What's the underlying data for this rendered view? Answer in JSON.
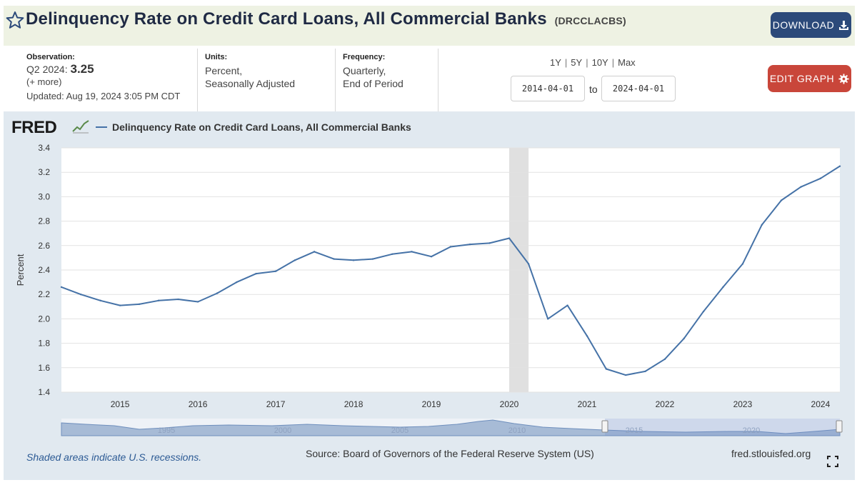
{
  "header": {
    "title": "Delinquency Rate on Credit Card Loans, All Commercial Banks",
    "series_id": "(DRCCLACBS)",
    "download_label": "DOWNLOAD",
    "bg_color": "#eef2e3"
  },
  "meta": {
    "observation_hdr": "Observation:",
    "observation_period": "Q2 2024:",
    "observation_value": "3.25",
    "more": "(+ more)",
    "updated_label": "Updated:",
    "updated": "Aug 19, 2024 3:05 PM CDT",
    "units_hdr": "Units:",
    "units_1": "Percent,",
    "units_2": "Seasonally Adjusted",
    "freq_hdr": "Frequency:",
    "freq_1": "Quarterly,",
    "freq_2": "End of Period"
  },
  "controls": {
    "ranges": [
      "1Y",
      "5Y",
      "10Y",
      "Max"
    ],
    "date_from": "2014-04-01",
    "to_label": "to",
    "date_to": "2024-04-01",
    "edit_label": "EDIT GRAPH"
  },
  "chart": {
    "logo_text": "FRED",
    "legend_label": "Delinquency Rate on Credit Card Loans, All Commercial Banks",
    "footer_note": "Shaded areas indicate U.S. recessions.",
    "source": "Source: Board of Governors of the Federal Reserve System (US)",
    "site": "fred.stlouisfed.org",
    "line_color": "#4572a7",
    "recession_color": "#e0e0e0"
  },
  "chart_data": {
    "type": "line",
    "title": "Delinquency Rate on Credit Card Loans, All Commercial Banks",
    "xlabel": "",
    "ylabel": "Percent",
    "ylim": [
      1.4,
      3.4
    ],
    "yticks": [
      3.4,
      3.2,
      3.0,
      2.8,
      2.6,
      2.4,
      2.2,
      2.0,
      1.8,
      1.6,
      1.4
    ],
    "xticks": [
      "2015",
      "2016",
      "2017",
      "2018",
      "2019",
      "2020",
      "2021",
      "2022",
      "2023",
      "2024"
    ],
    "grid": true,
    "recession": {
      "start": "2020-01-01",
      "end": "2020-04-01"
    },
    "navigator_labels": [
      "1995",
      "2000",
      "2005",
      "2010",
      "2015",
      "2020"
    ],
    "series": [
      {
        "name": "Delinquency Rate on Credit Card Loans, All Commercial Banks",
        "x": [
          "2014-04-01",
          "2014-07-01",
          "2014-10-01",
          "2015-01-01",
          "2015-04-01",
          "2015-07-01",
          "2015-10-01",
          "2016-01-01",
          "2016-04-01",
          "2016-07-01",
          "2016-10-01",
          "2017-01-01",
          "2017-04-01",
          "2017-07-01",
          "2017-10-01",
          "2018-01-01",
          "2018-04-01",
          "2018-07-01",
          "2018-10-01",
          "2019-01-01",
          "2019-04-01",
          "2019-07-01",
          "2019-10-01",
          "2020-01-01",
          "2020-04-01",
          "2020-07-01",
          "2020-10-01",
          "2021-01-01",
          "2021-04-01",
          "2021-07-01",
          "2021-10-01",
          "2022-01-01",
          "2022-04-01",
          "2022-07-01",
          "2022-10-01",
          "2023-01-01",
          "2023-04-01",
          "2023-07-01",
          "2023-10-01",
          "2024-01-01",
          "2024-04-01"
        ],
        "values": [
          2.26,
          2.2,
          2.15,
          2.11,
          2.12,
          2.15,
          2.16,
          2.14,
          2.21,
          2.3,
          2.37,
          2.39,
          2.48,
          2.55,
          2.49,
          2.48,
          2.49,
          2.53,
          2.55,
          2.51,
          2.59,
          2.61,
          2.62,
          2.66,
          2.45,
          2.0,
          2.11,
          1.86,
          1.59,
          1.54,
          1.57,
          1.67,
          1.84,
          2.06,
          2.26,
          2.45,
          2.77,
          2.97,
          3.08,
          3.15,
          3.25
        ]
      }
    ]
  }
}
